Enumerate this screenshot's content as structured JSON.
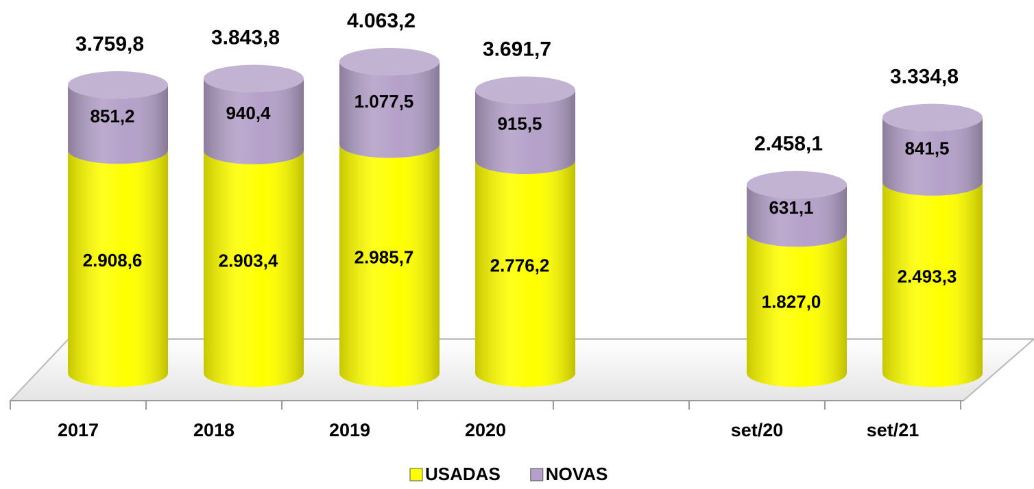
{
  "chart_data": {
    "type": "stacked-cylinder",
    "categories": [
      "2017",
      "2018",
      "2019",
      "2020",
      null,
      "set/20",
      "set/21"
    ],
    "series": [
      {
        "name": "USADAS",
        "color": "#ffff00",
        "values": [
          2908.6,
          2903.4,
          2985.7,
          2776.2,
          null,
          1827.0,
          2493.3
        ],
        "value_labels": [
          "2.908,6",
          "2.903,4",
          "2.985,7",
          "2.776,2",
          null,
          "1.827,0",
          "2.493,3"
        ]
      },
      {
        "name": "NOVAS",
        "color": "#b4a0c8",
        "values": [
          851.2,
          940.4,
          1077.5,
          915.5,
          null,
          631.1,
          841.5
        ],
        "value_labels": [
          "851,2",
          "940,4",
          "1.077,5",
          "915,5",
          null,
          "631,1",
          "841,5"
        ]
      }
    ],
    "totals": [
      3759.8,
      3843.8,
      4063.2,
      3691.7,
      null,
      2458.1,
      3334.8
    ],
    "total_labels": [
      "3.759,8",
      "3.843,8",
      "4.063,2",
      "3.691,7",
      null,
      "2.458,1",
      "3.334,8"
    ],
    "legend": "bottom"
  }
}
